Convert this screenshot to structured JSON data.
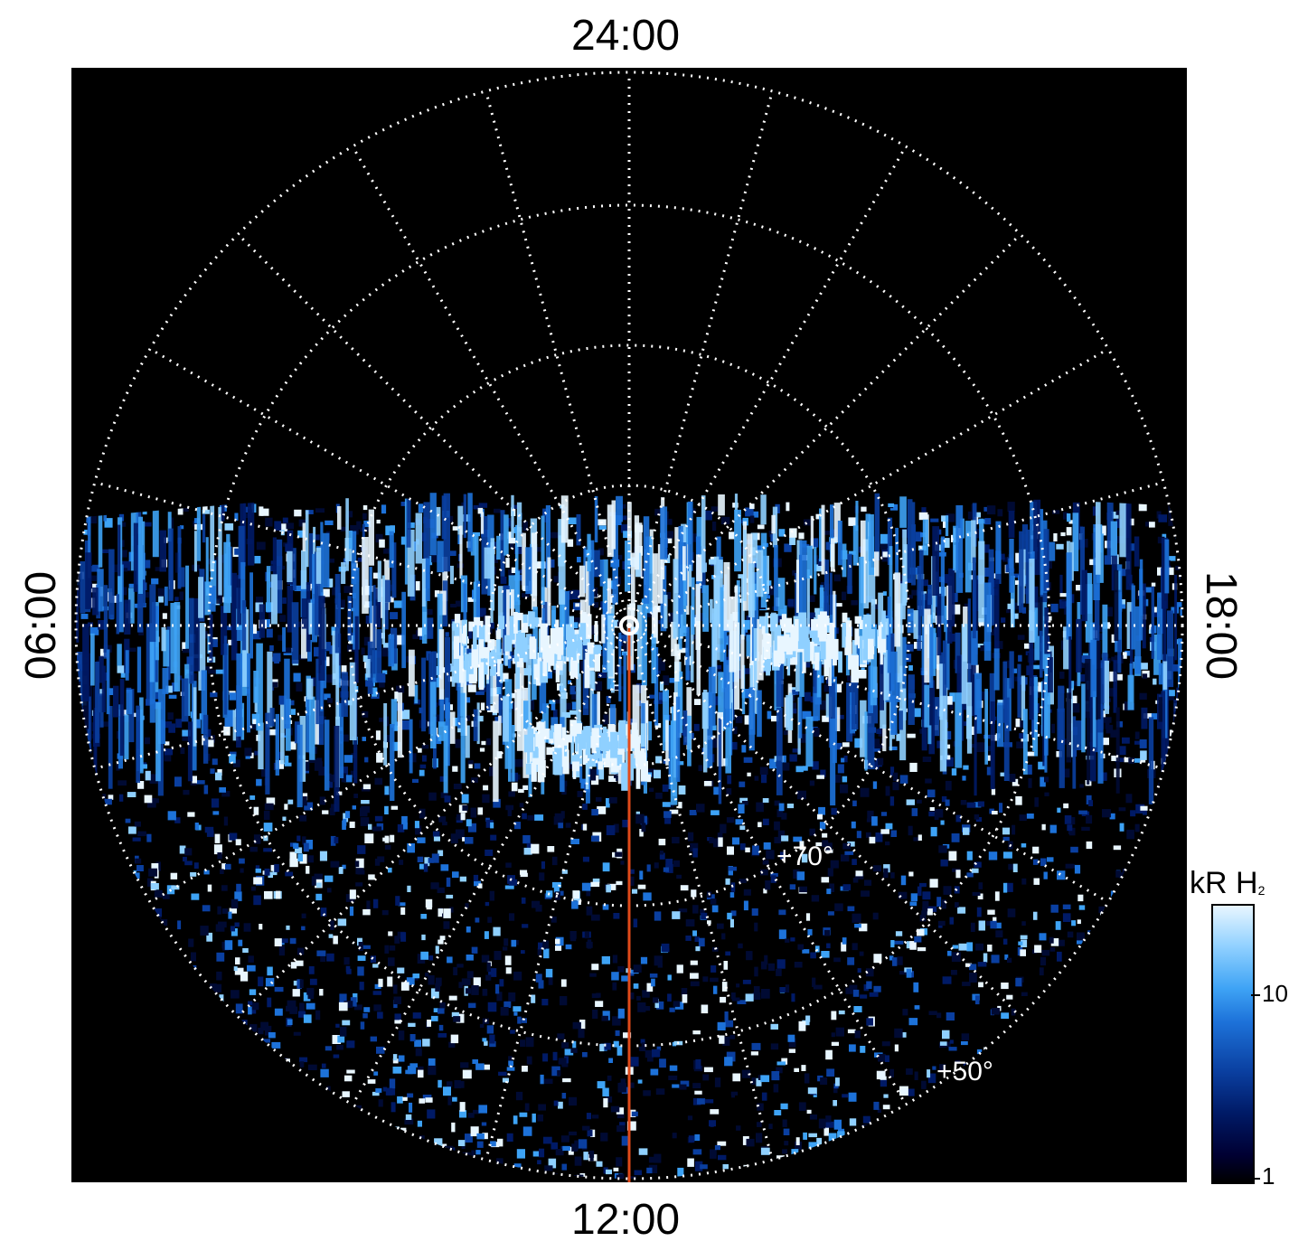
{
  "labels": {
    "top": "24:00",
    "bottom": "12:00",
    "left": "06:00",
    "right": "18:00"
  },
  "latitude_labels": [
    "+70°",
    "+50°"
  ],
  "colorbar": {
    "title": "kR H",
    "title_sub": "2",
    "ticks": [
      "10",
      "1"
    ]
  },
  "colors": {
    "background": "#000000",
    "grid": "#ffffff",
    "meridian_line": "#e04a1a",
    "emission_dark": "#001a66",
    "emission_mid": "#1d72d9",
    "emission_bright": "#e8f6ff"
  }
}
